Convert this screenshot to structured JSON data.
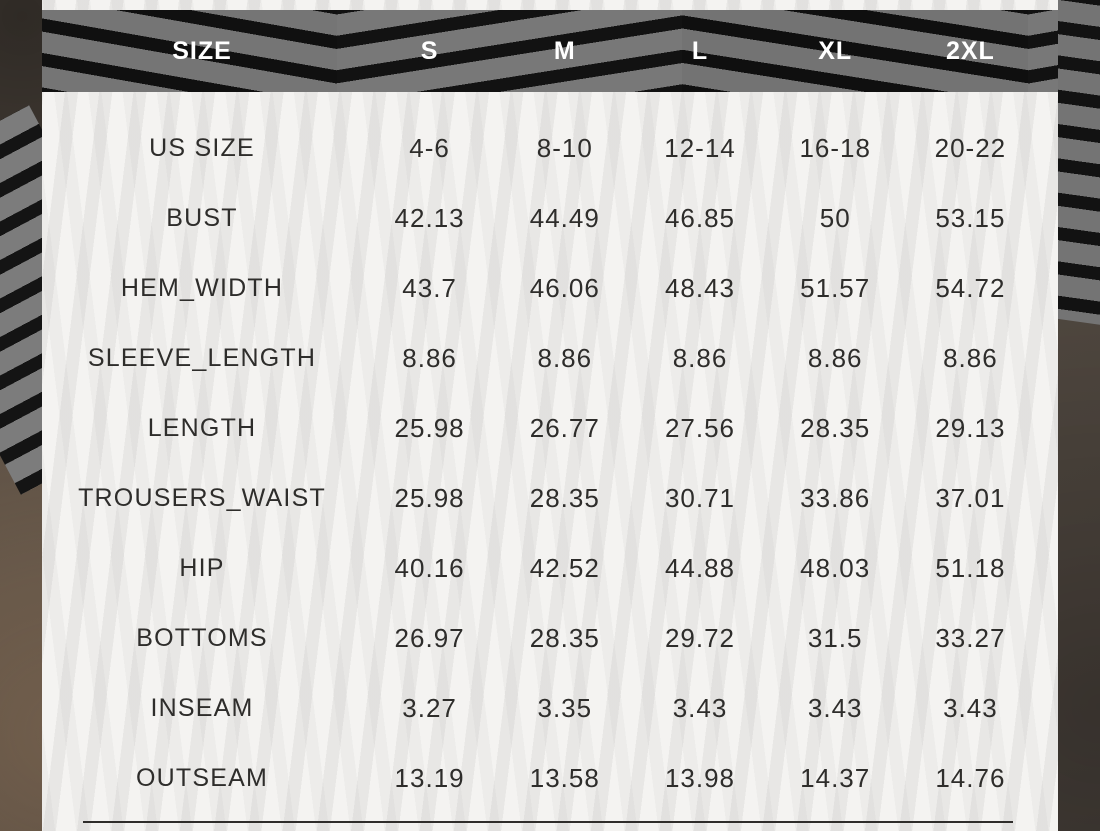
{
  "chart_data": {
    "type": "table",
    "columns": [
      "SIZE",
      "S",
      "M",
      "L",
      "XL",
      "2XL"
    ],
    "rows": [
      {
        "label": "US SIZE",
        "values": [
          "4-6",
          "8-10",
          "12-14",
          "16-18",
          "20-22"
        ]
      },
      {
        "label": "BUST",
        "values": [
          "42.13",
          "44.49",
          "46.85",
          "50",
          "53.15"
        ]
      },
      {
        "label": "HEM_WIDTH",
        "values": [
          "43.7",
          "46.06",
          "48.43",
          "51.57",
          "54.72"
        ]
      },
      {
        "label": "SLEEVE_LENGTH",
        "values": [
          "8.86",
          "8.86",
          "8.86",
          "8.86",
          "8.86"
        ]
      },
      {
        "label": "LENGTH",
        "values": [
          "25.98",
          "26.77",
          "27.56",
          "28.35",
          "29.13"
        ]
      },
      {
        "label": "TROUSERS_WAIST",
        "values": [
          "25.98",
          "28.35",
          "30.71",
          "33.86",
          "37.01"
        ]
      },
      {
        "label": "HIP",
        "values": [
          "40.16",
          "42.52",
          "44.88",
          "48.03",
          "51.18"
        ]
      },
      {
        "label": "BOTTOMS",
        "values": [
          "26.97",
          "28.35",
          "29.72",
          "31.5",
          "33.27"
        ]
      },
      {
        "label": "INSEAM",
        "values": [
          "3.27",
          "3.35",
          "3.43",
          "3.43",
          "3.43"
        ]
      },
      {
        "label": "OUTSEAM",
        "values": [
          "13.19",
          "13.58",
          "13.98",
          "14.37",
          "14.76"
        ]
      }
    ],
    "layout_hints": {
      "header_background": "striped fabric photo",
      "body_background": "semi-transparent white over photo",
      "grid": "off",
      "bottom_divider": true
    }
  },
  "colors": {
    "header_text": "#ffffff",
    "body_text": "#2e2d2b",
    "panel": "#f4f3f1",
    "fabric_gray": "#757575",
    "fabric_black": "#101010",
    "floor_brown": "#4e463e",
    "divider": "#2f2d2b"
  }
}
